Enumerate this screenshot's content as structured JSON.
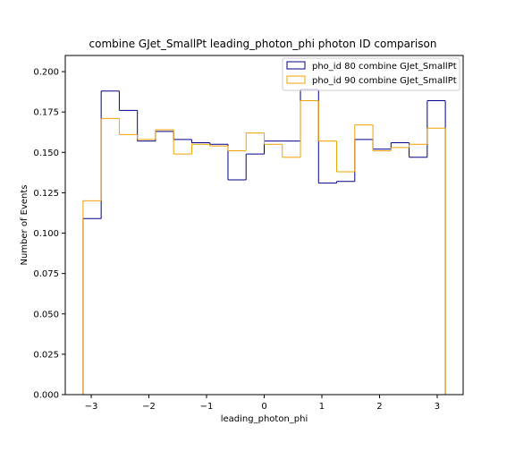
{
  "chart_data": {
    "type": "histogram-step",
    "title": "combine GJet_SmallPt leading_photon_phi photon ID comparison",
    "xlabel": "leading_photon_phi",
    "ylabel": "Number of Events",
    "xlim": [
      -3.45,
      3.45
    ],
    "ylim": [
      0.0,
      0.21
    ],
    "xticks": [
      -3,
      -2,
      -1,
      0,
      1,
      2,
      3
    ],
    "xtick_labels": [
      "−3",
      "−2",
      "−1",
      "0",
      "1",
      "2",
      "3"
    ],
    "yticks": [
      0.0,
      0.025,
      0.05,
      0.075,
      0.1,
      0.125,
      0.15,
      0.175,
      0.2
    ],
    "ytick_labels": [
      "0.000",
      "0.025",
      "0.050",
      "0.075",
      "0.100",
      "0.125",
      "0.150",
      "0.175",
      "0.200"
    ],
    "bin_edges": [
      -3.1416,
      -2.8274,
      -2.5133,
      -2.1991,
      -1.885,
      -1.5708,
      -1.2566,
      -0.9425,
      -0.6283,
      -0.3142,
      0.0,
      0.3142,
      0.6283,
      0.9425,
      1.2566,
      1.5708,
      1.885,
      2.1991,
      2.5133,
      2.8274,
      3.1416
    ],
    "legend_position": "upper right",
    "grid": false,
    "series": [
      {
        "name": "pho_id 80 combine GJet_SmallPt",
        "color": "#00008b",
        "values": [
          0.109,
          0.188,
          0.176,
          0.157,
          0.163,
          0.158,
          0.156,
          0.155,
          0.133,
          0.149,
          0.157,
          0.157,
          0.189,
          0.131,
          0.132,
          0.158,
          0.152,
          0.156,
          0.147,
          0.182
        ]
      },
      {
        "name": "pho_id 90 combine GJet_SmallPt",
        "color": "#f0a000",
        "values": [
          0.12,
          0.171,
          0.161,
          0.158,
          0.164,
          0.149,
          0.155,
          0.154,
          0.151,
          0.162,
          0.155,
          0.147,
          0.182,
          0.157,
          0.138,
          0.167,
          0.151,
          0.153,
          0.155,
          0.165
        ]
      }
    ]
  }
}
